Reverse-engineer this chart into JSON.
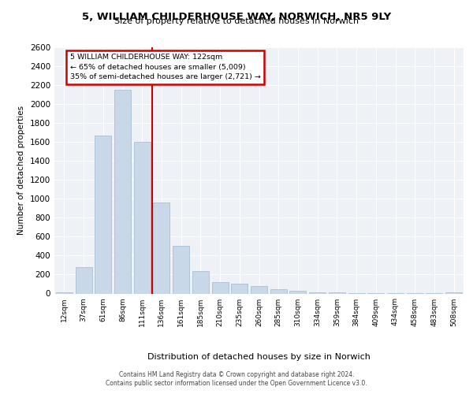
{
  "title1": "5, WILLIAM CHILDERHOUSE WAY, NORWICH, NR5 9LY",
  "title2": "Size of property relative to detached houses in Norwich",
  "xlabel": "Distribution of detached houses by size in Norwich",
  "ylabel": "Number of detached properties",
  "categories": [
    "12sqm",
    "37sqm",
    "61sqm",
    "86sqm",
    "111sqm",
    "136sqm",
    "161sqm",
    "185sqm",
    "210sqm",
    "235sqm",
    "260sqm",
    "285sqm",
    "310sqm",
    "334sqm",
    "359sqm",
    "384sqm",
    "409sqm",
    "434sqm",
    "458sqm",
    "483sqm",
    "508sqm"
  ],
  "values": [
    15,
    280,
    1670,
    2150,
    1600,
    960,
    500,
    240,
    120,
    100,
    80,
    45,
    25,
    15,
    10,
    8,
    5,
    3,
    2,
    1,
    12
  ],
  "bar_color": "#c8d8e8",
  "bar_edge_color": "#a0b8d0",
  "vline_x": 4.5,
  "vline_color": "#cc0000",
  "annotation_text": "5 WILLIAM CHILDERHOUSE WAY: 122sqm\n← 65% of detached houses are smaller (5,009)\n35% of semi-detached houses are larger (2,721) →",
  "annotation_box_color": "#cc0000",
  "ylim": [
    0,
    2600
  ],
  "yticks": [
    0,
    200,
    400,
    600,
    800,
    1000,
    1200,
    1400,
    1600,
    1800,
    2000,
    2200,
    2400,
    2600
  ],
  "footer1": "Contains HM Land Registry data © Crown copyright and database right 2024.",
  "footer2": "Contains public sector information licensed under the Open Government Licence v3.0.",
  "bg_color": "#eef2f7",
  "grid_color": "#ffffff"
}
